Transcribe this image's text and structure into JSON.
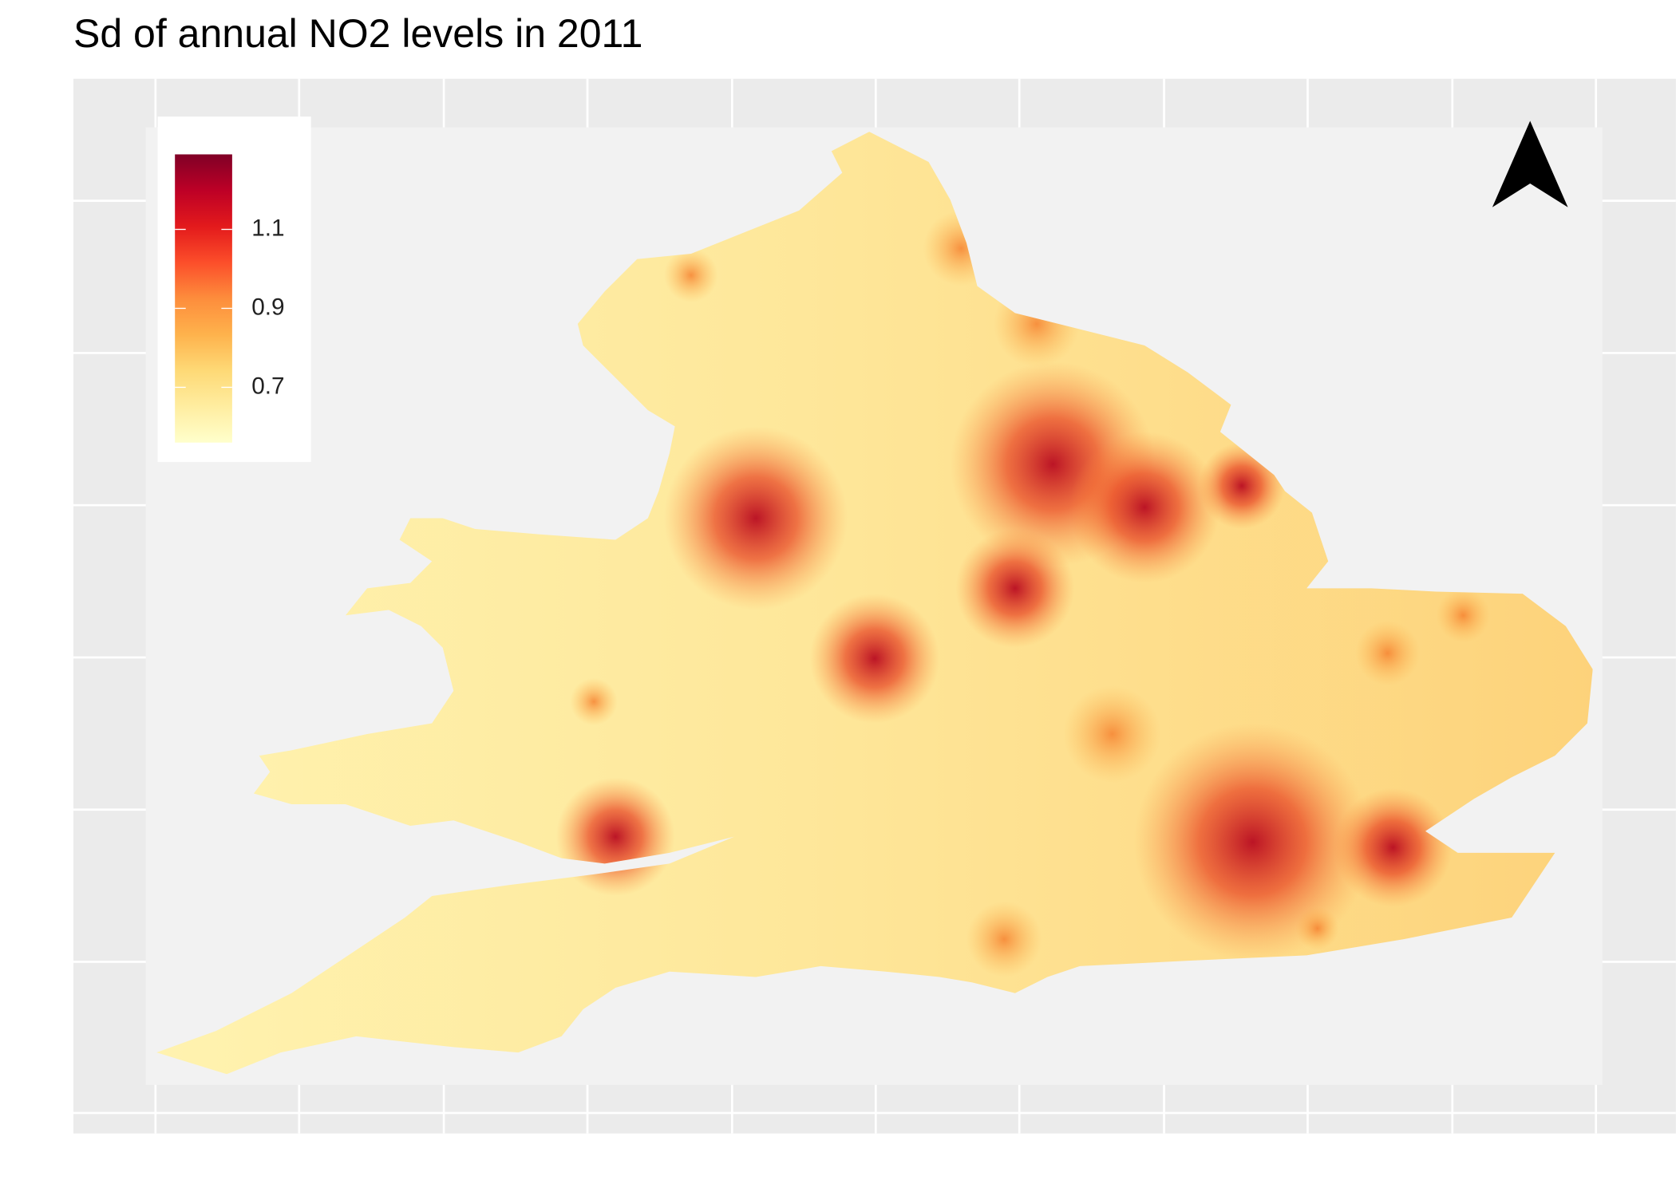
{
  "title": "Sd of annual NO2 levels in 2011",
  "legend": {
    "range": [
      0.56,
      1.29
    ],
    "ticks": [
      1.1,
      0.9,
      0.7
    ],
    "colors": [
      "#ffffcc",
      "#ffeda0",
      "#fed976",
      "#feb24c",
      "#fd8d3c",
      "#fc4e2a",
      "#e31a1c",
      "#bd0026",
      "#800026"
    ]
  }
}
